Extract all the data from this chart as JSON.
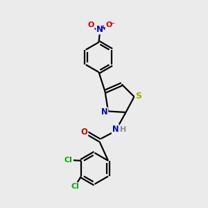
{
  "background_color": "#ebebeb",
  "atom_colors": {
    "C": "#000000",
    "N": "#0000cc",
    "O": "#cc0000",
    "S": "#aaaa00",
    "Cl": "#00aa00",
    "H": "#888888"
  },
  "bond_color": "#000000",
  "bond_width": 1.6,
  "font_size_atom": 8.5,
  "font_size_small": 7.5
}
